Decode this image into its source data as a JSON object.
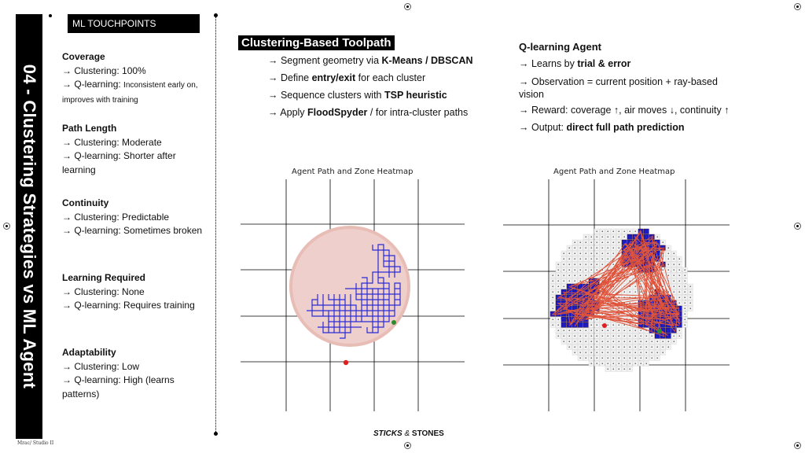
{
  "sidebar": {
    "title": "04 - Clustering Strategies vs ML Agent",
    "footer": "Mrac/ Studio II"
  },
  "touchpoints": {
    "header": "ML TOUCHPOINTS",
    "metrics": [
      {
        "title": "Coverage",
        "lines": [
          "→ Clustering: 100%",
          "→ Q-learning:"
        ],
        "small": "Inconsistent early on, improves with training"
      },
      {
        "title": "Path Length",
        "lines": [
          "→ Clustering: Moderate",
          "→ Q-learning: Shorter after learning"
        ]
      },
      {
        "title": "Continuity",
        "lines": [
          "→ Clustering: Predictable",
          "→ Q-learning: Sometimes broken"
        ]
      },
      {
        "title": "Learning Required",
        "lines": [
          "→ Clustering: None",
          "→ Q-learning: Requires training"
        ]
      },
      {
        "title": "Adaptability",
        "lines": [
          "→ Clustering: Low",
          "→ Q-learning: High (learns patterns)"
        ]
      }
    ]
  },
  "clustering": {
    "title": "Clustering-Based Toolpath",
    "b1_pre": "→ Segment geometry via ",
    "b1_bold": "K-Means / DBSCAN",
    "b2_pre": "→ Define ",
    "b2_bold": "entry/exit",
    "b2_post": " for each cluster",
    "b3_pre": "→ Sequence clusters with ",
    "b3_bold": "TSP heuristic",
    "b4_pre": "→ Apply ",
    "b4_bold": "FloodSpyder",
    "b4_post": " / for intra-cluster paths"
  },
  "qlearning": {
    "title": "Q-learning Agent",
    "l1_pre": "→ Learns by ",
    "l1_bold": "trial & error",
    "l2": "→ Observation = current position + ray-based vision",
    "l3": "→ Reward: coverage ↑, air moves ↓, continuity ↑",
    "l4_pre": "→ Output: ",
    "l4_bold": "direct full path prediction"
  },
  "plots": {
    "left_title": "Agent Path and Zone Heatmap",
    "right_title": "Agent Path and Zone Heatmap",
    "colors": {
      "path": "#2b2bd6",
      "fill": "#efcfcb",
      "start": "#2e8b2e",
      "end": "#e02020",
      "visited": "#1c1cc0",
      "visited_edge": "#e0533a"
    }
  },
  "brand": {
    "sticks": "STICKS",
    "amp": " & ",
    "stones": "STONES"
  }
}
